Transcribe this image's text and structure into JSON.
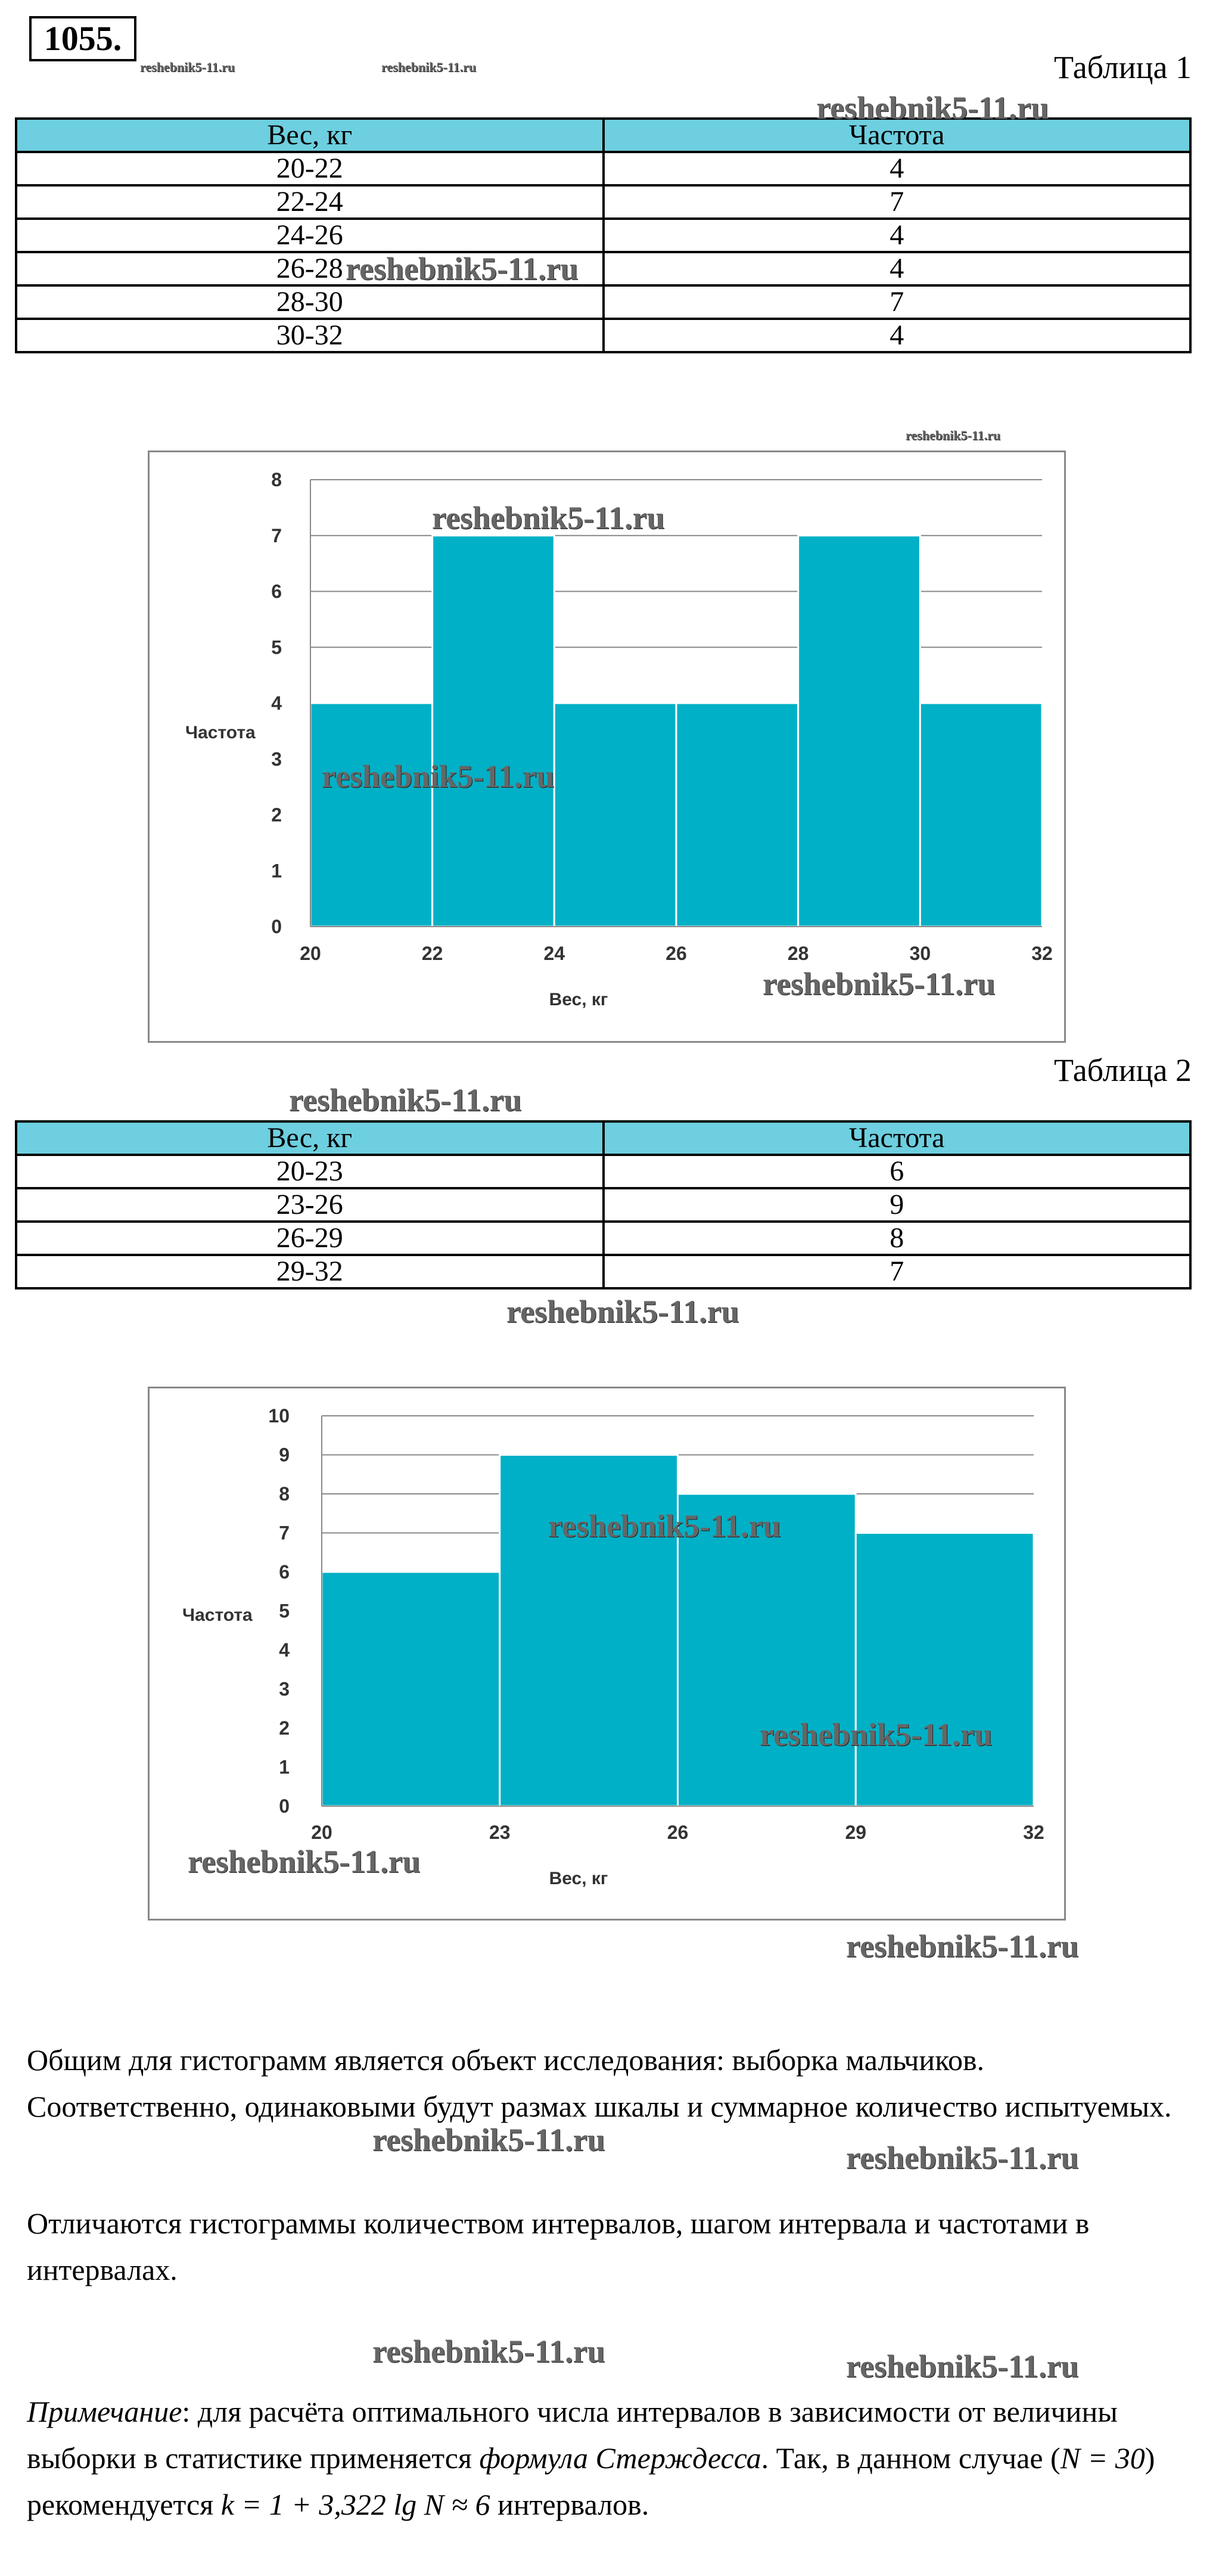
{
  "problem_number": "1055.",
  "table1": {
    "caption": "Таблица 1",
    "headers": [
      "Вес, кг",
      "Частота"
    ],
    "rows": [
      [
        "20-22",
        "4"
      ],
      [
        "22-24",
        "7"
      ],
      [
        "24-26",
        "4"
      ],
      [
        "26-28",
        "4"
      ],
      [
        "28-30",
        "7"
      ],
      [
        "30-32",
        "4"
      ]
    ]
  },
  "table2": {
    "caption": "Таблица 2",
    "headers": [
      "Вес, кг",
      "Частота"
    ],
    "rows": [
      [
        "20-23",
        "6"
      ],
      [
        "23-26",
        "9"
      ],
      [
        "26-29",
        "8"
      ],
      [
        "29-32",
        "7"
      ]
    ]
  },
  "chart_data": [
    {
      "type": "bar",
      "title": "",
      "xlabel": "Вес, кг",
      "ylabel": "Частота",
      "bins": [
        [
          20,
          22
        ],
        [
          22,
          24
        ],
        [
          24,
          26
        ],
        [
          26,
          28
        ],
        [
          28,
          30
        ],
        [
          30,
          32
        ]
      ],
      "values": [
        4,
        7,
        4,
        4,
        7,
        4
      ],
      "x_ticks": [
        "20",
        "22",
        "24",
        "26",
        "28",
        "30",
        "32"
      ],
      "y_ticks": [
        "0",
        "1",
        "2",
        "3",
        "4",
        "5",
        "6",
        "7",
        "8"
      ],
      "xlim": [
        20,
        32
      ],
      "ylim": [
        0,
        8
      ],
      "grid": true,
      "bar_color": "#00b0c6"
    },
    {
      "type": "bar",
      "title": "",
      "xlabel": "Вес, кг",
      "ylabel": "Частота",
      "bins": [
        [
          20,
          23
        ],
        [
          23,
          26
        ],
        [
          26,
          29
        ],
        [
          29,
          32
        ]
      ],
      "values": [
        6,
        9,
        8,
        7
      ],
      "x_ticks": [
        "20",
        "23",
        "26",
        "29",
        "32"
      ],
      "y_ticks": [
        "0",
        "1",
        "2",
        "3",
        "4",
        "5",
        "6",
        "7",
        "8",
        "9",
        "10"
      ],
      "xlim": [
        20,
        32
      ],
      "ylim": [
        0,
        10
      ],
      "grid": true,
      "bar_color": "#00b0c6"
    }
  ],
  "text": {
    "p1": "Общим для гистограмм является объект исследования: выборка мальчиков. Соответственно, одинаковыми будут размах шкалы и суммарное  количество испытуемых.",
    "p2": "Отличаются гистограммы количеством интервалов, шагом интервала и частотами в интервалах.",
    "note_label": "Примечание",
    "note_a": ": для расчёта оптимального числа интервалов в зависимости от величины выборки в статистике применяется ",
    "note_formula_name": "формула Стерждесса",
    "note_b": ". Так, в данном случае (",
    "note_n": "N = 30",
    "note_c": ") рекомендуется ",
    "note_k": "k = 1 + 3,322 lg N ≈ 6",
    "note_d": " интервалов."
  },
  "watermark": "reshebnik5-11.ru"
}
